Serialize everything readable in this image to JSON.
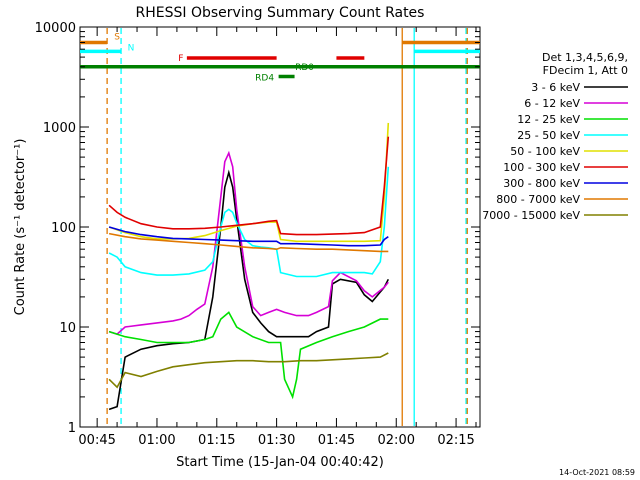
{
  "chart_data": {
    "type": "line",
    "title": "RHESSI Observing Summary Count Rates",
    "xlabel": "Start Time (15-Jan-04 00:40:42)",
    "ylabel": "Count Rate (s⁻¹ detector⁻¹)",
    "yscale": "log",
    "ylim": [
      1,
      10000
    ],
    "xlim_minutes": [
      40.7,
      141.0
    ],
    "y_ticks": [
      "1",
      "10",
      "100",
      "1000",
      "10000"
    ],
    "x_ticks": [
      {
        "label": "00:45",
        "minute": 45
      },
      {
        "label": "01:00",
        "minute": 60
      },
      {
        "label": "01:15",
        "minute": 75
      },
      {
        "label": "01:30",
        "minute": 90
      },
      {
        "label": "01:45",
        "minute": 105
      },
      {
        "label": "02:00",
        "minute": 120
      },
      {
        "label": "02:15",
        "minute": 135
      }
    ],
    "legend_header": [
      "Det 1,3,4,5,6,9,",
      "FDecim 1, Att 0"
    ],
    "series": [
      {
        "name": "3 - 6 keV",
        "color": "#000000",
        "points": [
          [
            48,
            1.5
          ],
          [
            50,
            1.6
          ],
          [
            52,
            5
          ],
          [
            56,
            6
          ],
          [
            60,
            6.5
          ],
          [
            64,
            6.8
          ],
          [
            68,
            7
          ],
          [
            72,
            7.5
          ],
          [
            74,
            20
          ],
          [
            76,
            100
          ],
          [
            77,
            250
          ],
          [
            78,
            350
          ],
          [
            79,
            250
          ],
          [
            80,
            120
          ],
          [
            82,
            30
          ],
          [
            84,
            14
          ],
          [
            86,
            11
          ],
          [
            88,
            9
          ],
          [
            90,
            8
          ],
          [
            92,
            8
          ],
          [
            95,
            8
          ],
          [
            98,
            8
          ],
          [
            100,
            9
          ],
          [
            103,
            10
          ],
          [
            104,
            27
          ],
          [
            106,
            30
          ],
          [
            110,
            28
          ],
          [
            112,
            21
          ],
          [
            114,
            18
          ],
          [
            117,
            25
          ],
          [
            118,
            30
          ]
        ]
      },
      {
        "name": "6 - 12 keV",
        "color": "#d600d6",
        "points": [
          [
            48,
            9
          ],
          [
            50,
            8.5
          ],
          [
            52,
            10
          ],
          [
            56,
            10.5
          ],
          [
            60,
            11
          ],
          [
            64,
            11.5
          ],
          [
            66,
            12
          ],
          [
            68,
            13
          ],
          [
            70,
            15
          ],
          [
            72,
            17
          ],
          [
            74,
            40
          ],
          [
            76,
            200
          ],
          [
            77,
            450
          ],
          [
            78,
            550
          ],
          [
            79,
            400
          ],
          [
            80,
            150
          ],
          [
            82,
            40
          ],
          [
            84,
            16
          ],
          [
            86,
            13
          ],
          [
            88,
            14
          ],
          [
            90,
            15
          ],
          [
            92,
            14
          ],
          [
            95,
            13
          ],
          [
            98,
            13
          ],
          [
            100,
            14
          ],
          [
            103,
            16
          ],
          [
            104,
            29
          ],
          [
            106,
            35
          ],
          [
            110,
            29
          ],
          [
            112,
            23
          ],
          [
            114,
            20
          ],
          [
            117,
            25
          ],
          [
            118,
            28
          ]
        ]
      },
      {
        "name": "12 - 25 keV",
        "color": "#00e000",
        "points": [
          [
            48,
            9
          ],
          [
            52,
            8
          ],
          [
            56,
            7.5
          ],
          [
            60,
            7
          ],
          [
            64,
            7
          ],
          [
            68,
            7
          ],
          [
            72,
            7.5
          ],
          [
            74,
            8
          ],
          [
            76,
            12
          ],
          [
            78,
            14
          ],
          [
            80,
            10
          ],
          [
            84,
            8
          ],
          [
            88,
            7
          ],
          [
            91,
            7
          ],
          [
            92,
            3
          ],
          [
            94,
            2
          ],
          [
            95,
            3
          ],
          [
            96,
            6
          ],
          [
            100,
            7
          ],
          [
            104,
            8
          ],
          [
            108,
            9
          ],
          [
            112,
            10
          ],
          [
            116,
            12
          ],
          [
            118,
            12
          ]
        ]
      },
      {
        "name": "25 - 50 keV",
        "color": "#00ffff",
        "points": [
          [
            48,
            55
          ],
          [
            50,
            50
          ],
          [
            52,
            40
          ],
          [
            56,
            35
          ],
          [
            60,
            33
          ],
          [
            64,
            33
          ],
          [
            68,
            34
          ],
          [
            72,
            37
          ],
          [
            74,
            45
          ],
          [
            76,
            100
          ],
          [
            77,
            140
          ],
          [
            78,
            150
          ],
          [
            79,
            140
          ],
          [
            80,
            110
          ],
          [
            82,
            75
          ],
          [
            84,
            65
          ],
          [
            86,
            63
          ],
          [
            88,
            62
          ],
          [
            90,
            60
          ],
          [
            91,
            35
          ],
          [
            95,
            32
          ],
          [
            98,
            32
          ],
          [
            100,
            32
          ],
          [
            104,
            35
          ],
          [
            108,
            35
          ],
          [
            112,
            35
          ],
          [
            114,
            34
          ],
          [
            116,
            45
          ],
          [
            117,
            100
          ],
          [
            118,
            400
          ]
        ]
      },
      {
        "name": "50 - 100 keV",
        "color": "#e0e000",
        "points": [
          [
            48,
            100
          ],
          [
            52,
            88
          ],
          [
            56,
            80
          ],
          [
            60,
            76
          ],
          [
            64,
            76
          ],
          [
            68,
            77
          ],
          [
            72,
            82
          ],
          [
            76,
            92
          ],
          [
            80,
            102
          ],
          [
            84,
            108
          ],
          [
            88,
            112
          ],
          [
            90,
            112
          ],
          [
            91,
            75
          ],
          [
            95,
            72
          ],
          [
            100,
            72
          ],
          [
            104,
            72
          ],
          [
            108,
            72
          ],
          [
            112,
            72
          ],
          [
            116,
            73
          ],
          [
            117,
            200
          ],
          [
            118,
            1100
          ]
        ]
      },
      {
        "name": "100 - 300 keV",
        "color": "#e00000",
        "points": [
          [
            48,
            165
          ],
          [
            50,
            140
          ],
          [
            52,
            125
          ],
          [
            56,
            108
          ],
          [
            60,
            100
          ],
          [
            64,
            96
          ],
          [
            68,
            96
          ],
          [
            72,
            97
          ],
          [
            76,
            100
          ],
          [
            80,
            104
          ],
          [
            84,
            108
          ],
          [
            88,
            114
          ],
          [
            90,
            116
          ],
          [
            91,
            86
          ],
          [
            95,
            84
          ],
          [
            100,
            84
          ],
          [
            104,
            85
          ],
          [
            108,
            86
          ],
          [
            112,
            88
          ],
          [
            116,
            100
          ],
          [
            117,
            250
          ],
          [
            118,
            800
          ]
        ]
      },
      {
        "name": "300 - 800 keV",
        "color": "#0000e0",
        "points": [
          [
            48,
            100
          ],
          [
            52,
            90
          ],
          [
            56,
            84
          ],
          [
            60,
            80
          ],
          [
            64,
            77
          ],
          [
            68,
            76
          ],
          [
            72,
            75
          ],
          [
            76,
            74
          ],
          [
            80,
            73
          ],
          [
            84,
            72
          ],
          [
            88,
            72
          ],
          [
            90,
            72
          ],
          [
            91,
            68
          ],
          [
            95,
            68
          ],
          [
            100,
            67
          ],
          [
            104,
            66
          ],
          [
            108,
            65
          ],
          [
            112,
            65
          ],
          [
            116,
            66
          ],
          [
            117,
            75
          ],
          [
            118,
            80
          ]
        ]
      },
      {
        "name": "800 - 7000 keV",
        "color": "#e07800",
        "points": [
          [
            48,
            86
          ],
          [
            52,
            80
          ],
          [
            56,
            76
          ],
          [
            60,
            74
          ],
          [
            64,
            72
          ],
          [
            68,
            70
          ],
          [
            72,
            68
          ],
          [
            76,
            66
          ],
          [
            80,
            64
          ],
          [
            84,
            62
          ],
          [
            88,
            61
          ],
          [
            90,
            60
          ],
          [
            91,
            62
          ],
          [
            95,
            61
          ],
          [
            100,
            60
          ],
          [
            104,
            60
          ],
          [
            108,
            59
          ],
          [
            112,
            58
          ],
          [
            116,
            57
          ],
          [
            118,
            57
          ]
        ]
      },
      {
        "name": "7000 - 15000 keV",
        "color": "#808000",
        "points": [
          [
            48,
            3
          ],
          [
            50,
            2.5
          ],
          [
            52,
            3.5
          ],
          [
            56,
            3.2
          ],
          [
            60,
            3.6
          ],
          [
            64,
            4
          ],
          [
            68,
            4.2
          ],
          [
            72,
            4.4
          ],
          [
            76,
            4.5
          ],
          [
            80,
            4.6
          ],
          [
            84,
            4.6
          ],
          [
            88,
            4.5
          ],
          [
            92,
            4.5
          ],
          [
            96,
            4.6
          ],
          [
            100,
            4.6
          ],
          [
            104,
            4.7
          ],
          [
            108,
            4.8
          ],
          [
            112,
            4.9
          ],
          [
            116,
            5
          ],
          [
            118,
            5.5
          ]
        ]
      }
    ],
    "boundaries": [
      {
        "minute": 47.5,
        "color": "#e07800",
        "style": "dashed"
      },
      {
        "minute": 51.0,
        "color": "#00ffff",
        "style": "dashed"
      },
      {
        "minute": 121.5,
        "color": "#e07800",
        "style": "solid"
      },
      {
        "minute": 124.5,
        "color": "#00ffff",
        "style": "solid"
      },
      {
        "minute": 137.5,
        "color": "#00ffff",
        "style": "dashed"
      },
      {
        "minute": 137.8,
        "color": "#e07800",
        "style": "dashed"
      }
    ],
    "flags": [
      {
        "label": "S",
        "color": "#e07800",
        "value": 7000,
        "segments": [
          [
            40.7,
            47.5
          ],
          [
            121.5,
            141
          ]
        ]
      },
      {
        "label": "N",
        "color": "#00ffff",
        "value": 5700,
        "segments": [
          [
            40.7,
            51
          ],
          [
            124.5,
            141
          ]
        ]
      },
      {
        "label": "F",
        "color": "#e00000",
        "value": 4900,
        "segments": [
          [
            67.5,
            90
          ],
          [
            105,
            112
          ]
        ]
      },
      {
        "label": "RD0",
        "color": "#008000",
        "value": 4000,
        "segments": [
          [
            40.7,
            141
          ]
        ]
      },
      {
        "label": "RD4",
        "color": "#008000",
        "value": 3200,
        "segments": [
          [
            90.5,
            94.5
          ]
        ]
      }
    ],
    "footer_date": "14-Oct-2021 08:59"
  }
}
